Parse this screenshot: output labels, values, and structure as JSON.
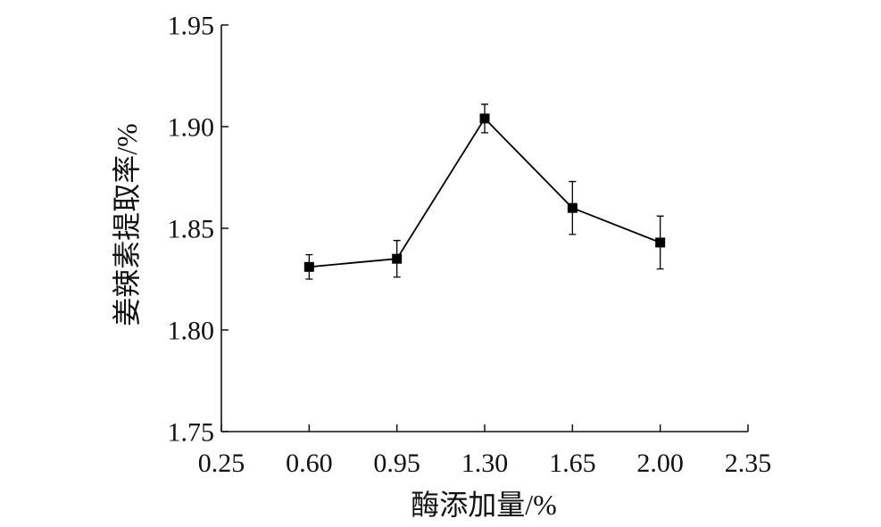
{
  "chart_data": {
    "type": "line",
    "xlabel": "酶添加量/%",
    "ylabel": "姜辣素提取率/%",
    "x_ticks": [
      "0.25",
      "0.60",
      "0.95",
      "1.30",
      "1.65",
      "2.00",
      "2.35"
    ],
    "y_ticks": [
      "1.75",
      "1.80",
      "1.85",
      "1.90",
      "1.95"
    ],
    "xlim": [
      0.25,
      2.35
    ],
    "ylim": [
      1.75,
      1.95
    ],
    "grid": false,
    "series": [
      {
        "x": [
          0.6,
          0.95,
          1.3,
          1.65,
          2.0
        ],
        "y": [
          1.831,
          1.835,
          1.904,
          1.86,
          1.843
        ],
        "error": [
          0.006,
          0.009,
          0.007,
          0.013,
          0.013
        ],
        "color": "#000000"
      }
    ]
  }
}
